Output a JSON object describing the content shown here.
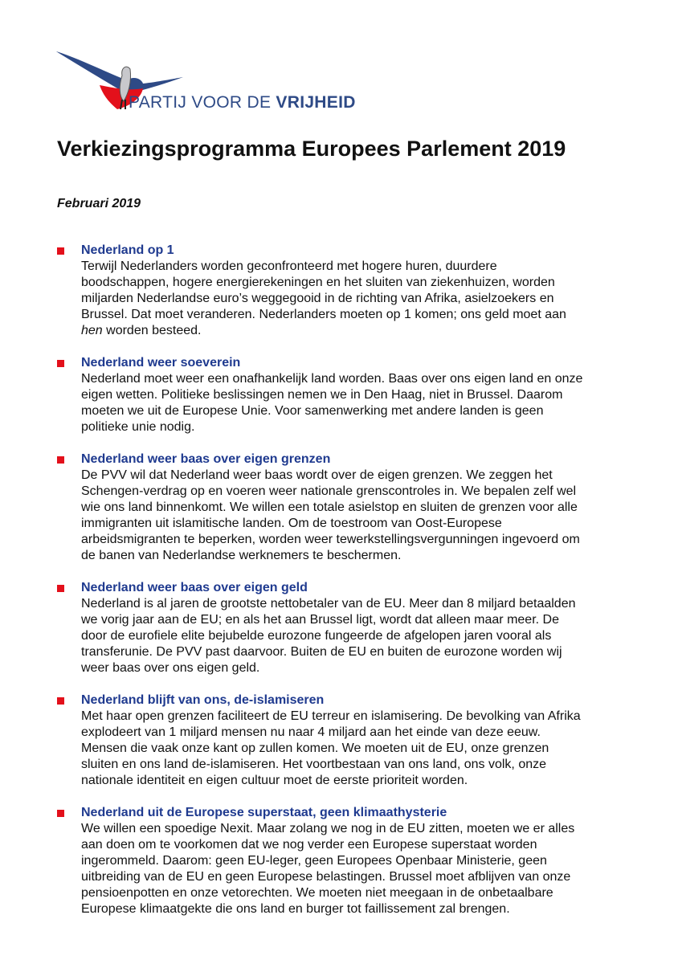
{
  "logo": {
    "text_regular": "PARTIJ VOOR DE ",
    "text_bold": "VRIJHEID",
    "colors": {
      "blue": "#2e4a86",
      "red": "#e3101b"
    }
  },
  "title": "Verkiezingsprogramma Europees Parlement 2019",
  "date": "Februari 2019",
  "bullet_color": "#e3101b",
  "heading_color": "#1f3a8f",
  "sections": [
    {
      "heading": "Nederland op 1",
      "lines": [
        "Terwijl Nederlanders worden geconfronteerd met hogere huren, duurdere",
        "boodschappen, hogere energierekeningen en het sluiten van ziekenhuizen, worden",
        "miljarden Nederlandse euro’s weggegooid in de richting van Afrika, asielzoekers en",
        "Brussel. Dat moet veranderen. Nederlanders moeten op 1 komen; ons geld moet aan"
      ],
      "last_line_italic": "hen",
      "last_line_rest": " worden besteed."
    },
    {
      "heading": "Nederland weer soeverein",
      "lines": [
        "Nederland moet weer een onafhankelijk land worden. Baas over ons eigen land en onze",
        "eigen wetten. Politieke beslissingen nemen we in Den Haag, niet in Brussel. Daarom",
        "moeten we uit de Europese Unie. Voor samenwerking met andere landen is geen",
        "politieke unie nodig."
      ]
    },
    {
      "heading": "Nederland weer baas over eigen grenzen",
      "lines": [
        "De PVV wil dat Nederland weer baas wordt over de eigen grenzen. We zeggen het",
        "Schengen-verdrag op en voeren weer nationale grenscontroles in. We bepalen zelf wel",
        "wie ons land binnenkomt. We willen een totale asielstop en sluiten de grenzen voor alle",
        "immigranten uit islamitische landen. Om de toestroom van Oost-Europese",
        "arbeidsmigranten te beperken, worden weer tewerkstellingsvergunningen ingevoerd om",
        "de banen van Nederlandse werknemers te beschermen."
      ]
    },
    {
      "heading": "Nederland weer baas over eigen geld",
      "lines": [
        "Nederland is al jaren de grootste nettobetaler van de EU. Meer dan 8 miljard betaalden",
        "we vorig jaar aan de EU; en als het aan Brussel ligt, wordt dat alleen maar meer. De",
        "door de eurofiele elite bejubelde eurozone fungeerde de afgelopen jaren vooral als",
        "transferunie. De PVV past daarvoor. Buiten de EU en buiten de eurozone worden wij",
        "weer baas over ons eigen geld."
      ]
    },
    {
      "heading": "Nederland blijft van ons, de-islamiseren",
      "lines": [
        "Met haar open grenzen faciliteert de EU terreur en islamisering. De bevolking van Afrika",
        "explodeert van 1 miljard mensen nu naar 4 miljard aan het einde van deze eeuw.",
        "Mensen die vaak onze kant op zullen komen. We moeten uit de EU, onze grenzen",
        "sluiten en ons land de-islamiseren. Het voortbestaan van ons land, ons volk, onze",
        "nationale identiteit en eigen cultuur moet de eerste prioriteit worden."
      ]
    },
    {
      "heading": "Nederland uit de Europese superstaat, geen klimaathysterie",
      "lines": [
        "We willen een spoedige Nexit. Maar zolang we nog in de EU zitten, moeten we er alles",
        "aan doen om te voorkomen dat we nog verder een Europese superstaat worden",
        "ingerommeld. Daarom: geen EU-leger, geen Europees Openbaar Ministerie, geen",
        "uitbreiding van de EU en geen Europese belastingen. Brussel moet afblijven van onze",
        "pensioenpotten en onze vetorechten. We moeten niet meegaan in de onbetaalbare",
        "Europese klimaatgekte die ons land en burger tot faillissement zal brengen."
      ]
    }
  ]
}
